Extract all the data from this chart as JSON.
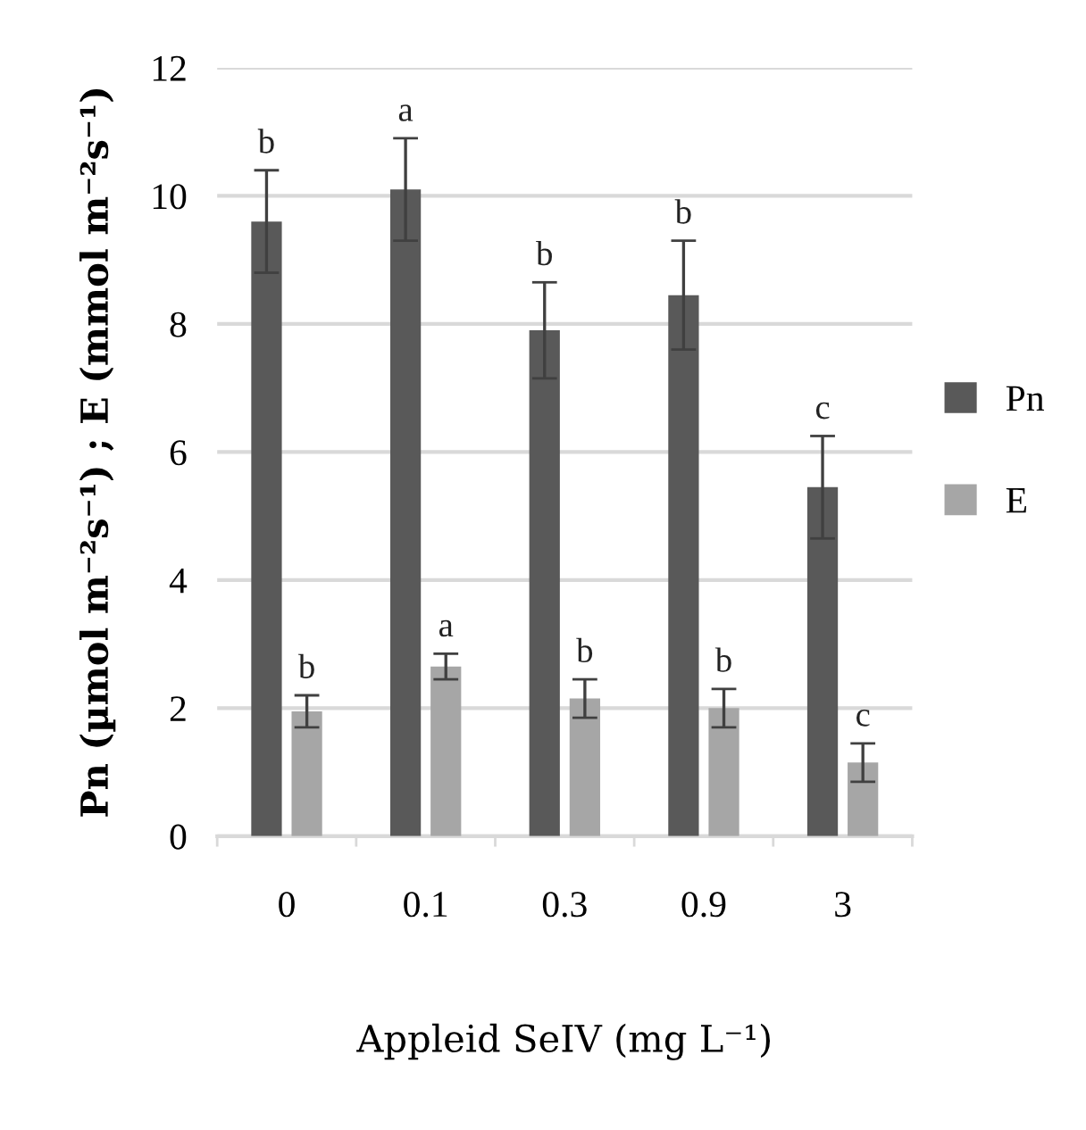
{
  "chart_data": {
    "type": "bar",
    "xlabel": "Appleid SeIV (mg L⁻¹)",
    "ylabel": "Pn (µmol m⁻²s⁻¹) ; E (mmol m⁻²s⁻¹)",
    "categories": [
      "0",
      "0.1",
      "0.3",
      "0.9",
      "3"
    ],
    "series": [
      {
        "name": "Pn",
        "color": "#595959",
        "values": [
          9.6,
          10.1,
          7.9,
          8.45,
          5.45
        ],
        "errors": [
          0.8,
          0.8,
          0.75,
          0.85,
          0.8
        ],
        "value_labels": [
          "b",
          "a",
          "b",
          "b",
          "c"
        ]
      },
      {
        "name": "E",
        "color": "#a6a6a6",
        "values": [
          1.95,
          2.65,
          2.15,
          2.0,
          1.15
        ],
        "errors": [
          0.25,
          0.2,
          0.3,
          0.3,
          0.3
        ],
        "value_labels": [
          "b",
          "a",
          "b",
          "b",
          "c"
        ]
      }
    ],
    "ylim": [
      0,
      12
    ],
    "yticks": [
      0,
      2,
      4,
      6,
      8,
      10,
      12
    ],
    "grid": "y",
    "legend": "right"
  }
}
